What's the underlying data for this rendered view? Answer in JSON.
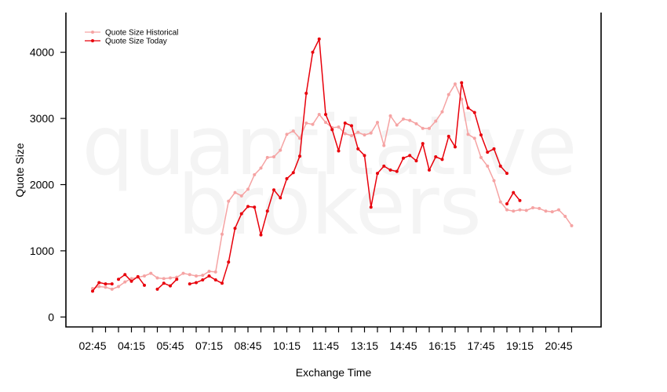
{
  "chart_data": {
    "type": "line",
    "xlabel": "Exchange Time",
    "ylabel": "Quote Size",
    "ylim": [
      -150,
      4600
    ],
    "yticks": [
      0,
      1000,
      2000,
      3000,
      4000
    ],
    "x_tick_labels": [
      "02:45",
      "04:15",
      "05:45",
      "07:15",
      "08:45",
      "10:15",
      "11:45",
      "13:15",
      "14:45",
      "16:15",
      "17:45",
      "19:15",
      "20:45"
    ],
    "x_tick_count": 38,
    "x_range": [
      0,
      37
    ],
    "watermark": [
      "quantitative",
      "brokers"
    ],
    "legend": {
      "position": "top-left"
    },
    "series": [
      {
        "name": "Quote Size Historical",
        "color": "#f5a3a3",
        "x": [
          0,
          0.5,
          1,
          1.5,
          2,
          2.5,
          3,
          3.5,
          4,
          4.5,
          5,
          5.5,
          6,
          6.5,
          7,
          7.5,
          8,
          8.5,
          9,
          9.5,
          10,
          10.5,
          11,
          11.5,
          12,
          12.5,
          13,
          13.5,
          14,
          14.5,
          15,
          15.5,
          16,
          16.5,
          17,
          17.5,
          18,
          18.5,
          19,
          19.5,
          20,
          20.5,
          21,
          21.5,
          22,
          22.5,
          23,
          23.5,
          24,
          24.5,
          25,
          25.5,
          26,
          26.5,
          27,
          27.5,
          28,
          28.5,
          29,
          29.5,
          30,
          30.5,
          31,
          31.5,
          32,
          32.5,
          33,
          33.5,
          34,
          34.5,
          35,
          35.5,
          36,
          36.5,
          37
        ],
        "values": [
          430,
          460,
          450,
          420,
          460,
          530,
          580,
          600,
          620,
          660,
          590,
          580,
          590,
          600,
          660,
          640,
          620,
          630,
          690,
          680,
          1250,
          1750,
          1880,
          1830,
          1930,
          2150,
          2250,
          2410,
          2420,
          2520,
          2760,
          2810,
          2700,
          2930,
          2910,
          3060,
          2940,
          2860,
          2870,
          2770,
          2740,
          2790,
          2750,
          2780,
          2940,
          2590,
          3040,
          2900,
          2990,
          2970,
          2920,
          2850,
          2850,
          2960,
          3100,
          3360,
          3520,
          3290,
          2760,
          2700,
          2410,
          2280,
          2060,
          1740,
          1620,
          1600,
          1620,
          1610,
          1650,
          1640,
          1600,
          1590,
          1620,
          1520,
          1380
        ]
      },
      {
        "name": "Quote Size Today",
        "color": "#e8000b",
        "segments": [
          {
            "x": [
              0,
              0.5,
              1,
              1.5
            ],
            "values": [
              390,
              520,
              500,
              500
            ]
          },
          {
            "x": [
              2,
              2.5,
              3,
              3.5,
              4
            ],
            "values": [
              570,
              640,
              540,
              610,
              480
            ]
          },
          {
            "x": [
              5,
              5.5,
              6,
              6.5
            ],
            "values": [
              420,
              510,
              470,
              570
            ]
          },
          {
            "x": [
              7.5,
              8,
              8.5,
              9,
              9.5,
              10,
              10.5,
              11,
              11.5,
              12,
              12.5,
              13,
              13.5,
              14,
              14.5,
              15,
              15.5,
              16,
              16.5,
              17,
              17.5,
              18,
              18.5,
              19,
              19.5,
              20,
              20.5,
              21,
              21.5,
              22,
              22.5,
              23,
              23.5,
              24,
              24.5,
              25,
              25.5,
              26,
              26.5,
              27,
              27.5,
              28,
              28.5,
              29,
              29.5,
              30,
              30.5,
              31,
              31.5,
              32
            ],
            "values": [
              500,
              520,
              560,
              620,
              560,
              510,
              830,
              1340,
              1560,
              1670,
              1660,
              1240,
              1600,
              1920,
              1800,
              2090,
              2180,
              2430,
              3380,
              4000,
              4200,
              3060,
              2830,
              2510,
              2930,
              2890,
              2540,
              2440,
              1660,
              2170,
              2280,
              2220,
              2200,
              2400,
              2440,
              2360,
              2620,
              2220,
              2420,
              2380,
              2730,
              2570,
              3540,
              3160,
              3090,
              2750,
              2490,
              2540,
              2280,
              2170
            ]
          },
          {
            "x": [
              32,
              32.5,
              33
            ],
            "values": [
              1710,
              1880,
              1760
            ]
          }
        ]
      }
    ]
  }
}
